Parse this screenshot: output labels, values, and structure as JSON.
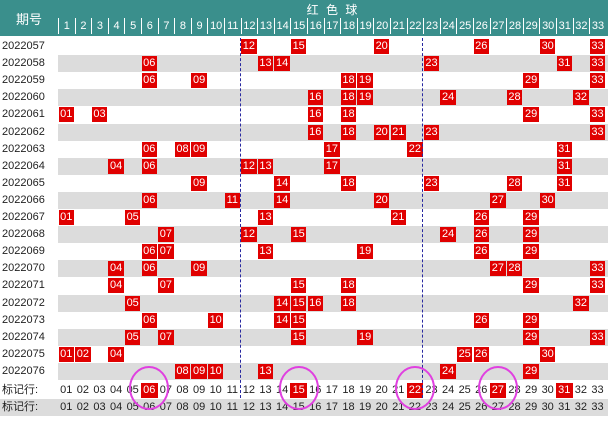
{
  "header": {
    "period_label": "期号",
    "red_label": "红 色 球"
  },
  "columns": [
    "1",
    "2",
    "3",
    "4",
    "5",
    "6",
    "7",
    "8",
    "9",
    "10",
    "11",
    "12",
    "13",
    "14",
    "15",
    "16",
    "17",
    "18",
    "19",
    "20",
    "21",
    "22",
    "23",
    "24",
    "25",
    "26",
    "27",
    "28",
    "29",
    "30",
    "31",
    "32",
    "33"
  ],
  "rows": [
    {
      "period": "2022057",
      "balls": [
        12,
        15,
        20,
        26,
        30,
        33
      ]
    },
    {
      "period": "2022058",
      "balls": [
        6,
        13,
        14,
        23,
        31,
        33
      ]
    },
    {
      "period": "2022059",
      "balls": [
        6,
        9,
        18,
        19,
        29,
        33
      ]
    },
    {
      "period": "2022060",
      "balls": [
        16,
        18,
        19,
        24,
        28,
        32
      ]
    },
    {
      "period": "2022061",
      "balls": [
        1,
        3,
        16,
        18,
        29,
        33
      ]
    },
    {
      "period": "2022062",
      "balls": [
        16,
        18,
        20,
        21,
        23,
        33
      ]
    },
    {
      "period": "2022063",
      "balls": [
        6,
        8,
        9,
        17,
        22,
        31
      ]
    },
    {
      "period": "2022064",
      "balls": [
        4,
        6,
        12,
        13,
        17,
        31
      ]
    },
    {
      "period": "2022065",
      "balls": [
        9,
        14,
        18,
        23,
        28,
        31
      ]
    },
    {
      "period": "2022066",
      "balls": [
        6,
        11,
        14,
        20,
        27,
        30
      ]
    },
    {
      "period": "2022067",
      "balls": [
        1,
        5,
        13,
        21,
        26,
        29
      ]
    },
    {
      "period": "2022068",
      "balls": [
        7,
        12,
        15,
        24,
        26,
        29
      ]
    },
    {
      "period": "2022069",
      "balls": [
        6,
        7,
        13,
        19,
        26,
        29
      ]
    },
    {
      "period": "2022070",
      "balls": [
        4,
        6,
        9,
        27,
        28,
        33
      ]
    },
    {
      "period": "2022071",
      "balls": [
        4,
        7,
        15,
        18,
        29,
        33
      ]
    },
    {
      "period": "2022072",
      "balls": [
        5,
        14,
        15,
        16,
        18,
        32
      ]
    },
    {
      "period": "2022073",
      "balls": [
        6,
        10,
        14,
        15,
        26,
        29
      ]
    },
    {
      "period": "2022074",
      "balls": [
        5,
        7,
        15,
        19,
        29,
        33
      ]
    },
    {
      "period": "2022075",
      "balls": [
        1,
        2,
        4,
        25,
        26,
        30
      ]
    },
    {
      "period": "2022076",
      "balls": [
        8,
        9,
        10,
        13,
        24,
        29
      ]
    }
  ],
  "marker_rows": [
    {
      "label": "标记行:",
      "nums": [
        "01",
        "02",
        "03",
        "04",
        "05",
        "06",
        "07",
        "08",
        "09",
        "10",
        "11",
        "12",
        "13",
        "14",
        "15",
        "16",
        "17",
        "18",
        "19",
        "20",
        "21",
        "22",
        "23",
        "24",
        "25",
        "26",
        "27",
        "28",
        "29",
        "30",
        "31",
        "32",
        "33"
      ],
      "highlighted": [
        6,
        15,
        22,
        27,
        31
      ]
    },
    {
      "label": "标记行:",
      "nums": [
        "01",
        "02",
        "03",
        "04",
        "05",
        "06",
        "07",
        "08",
        "09",
        "10",
        "11",
        "12",
        "13",
        "14",
        "15",
        "16",
        "17",
        "18",
        "19",
        "20",
        "21",
        "22",
        "23",
        "24",
        "25",
        "26",
        "27",
        "28",
        "29",
        "30",
        "31",
        "32",
        "33"
      ],
      "highlighted": []
    }
  ],
  "circled": [
    6,
    15,
    22,
    27
  ],
  "colors": {
    "header": "#3a8f8c",
    "ball": "#e00000",
    "stripe": "#dcdcdc",
    "circle": "#e040e0",
    "divider": "#2828a0"
  }
}
